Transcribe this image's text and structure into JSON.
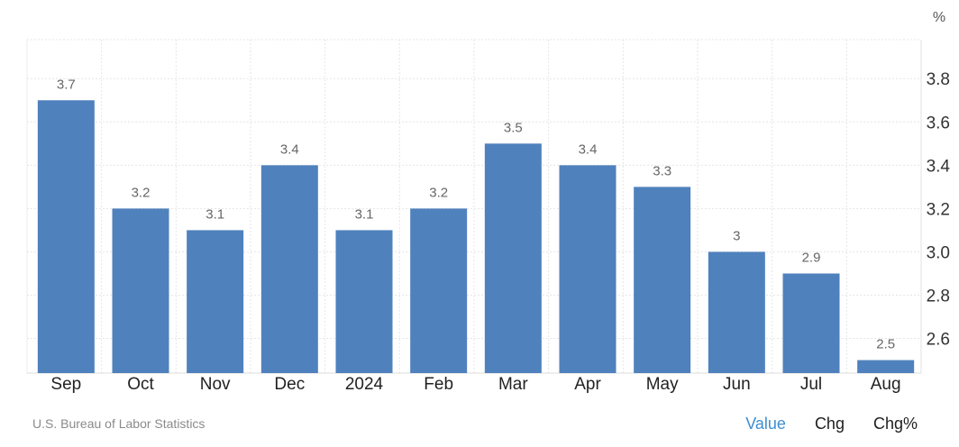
{
  "chart_data": {
    "type": "bar",
    "categories": [
      "Sep",
      "Oct",
      "Nov",
      "Dec",
      "2024",
      "Feb",
      "Mar",
      "Apr",
      "May",
      "Jun",
      "Jul",
      "Aug"
    ],
    "values": [
      3.7,
      3.2,
      3.1,
      3.4,
      3.1,
      3.2,
      3.5,
      3.4,
      3.3,
      3,
      2.9,
      2.5
    ],
    "value_labels": [
      "3.7",
      "3.2",
      "3.1",
      "3.4",
      "3.1",
      "3.2",
      "3.5",
      "3.4",
      "3.3",
      "3",
      "2.9",
      "2.5"
    ],
    "unit": "%",
    "yticks": [
      "2.6",
      "2.8",
      "3.0",
      "3.2",
      "3.4",
      "3.6",
      "3.8"
    ],
    "ylim": [
      2.44,
      3.98
    ],
    "bar_color": "#4f81bd",
    "grid": true
  },
  "source": "U.S. Bureau of Labor Statistics",
  "tabs": [
    {
      "label": "Value",
      "active": true
    },
    {
      "label": "Chg",
      "active": false
    },
    {
      "label": "Chg%",
      "active": false
    }
  ]
}
